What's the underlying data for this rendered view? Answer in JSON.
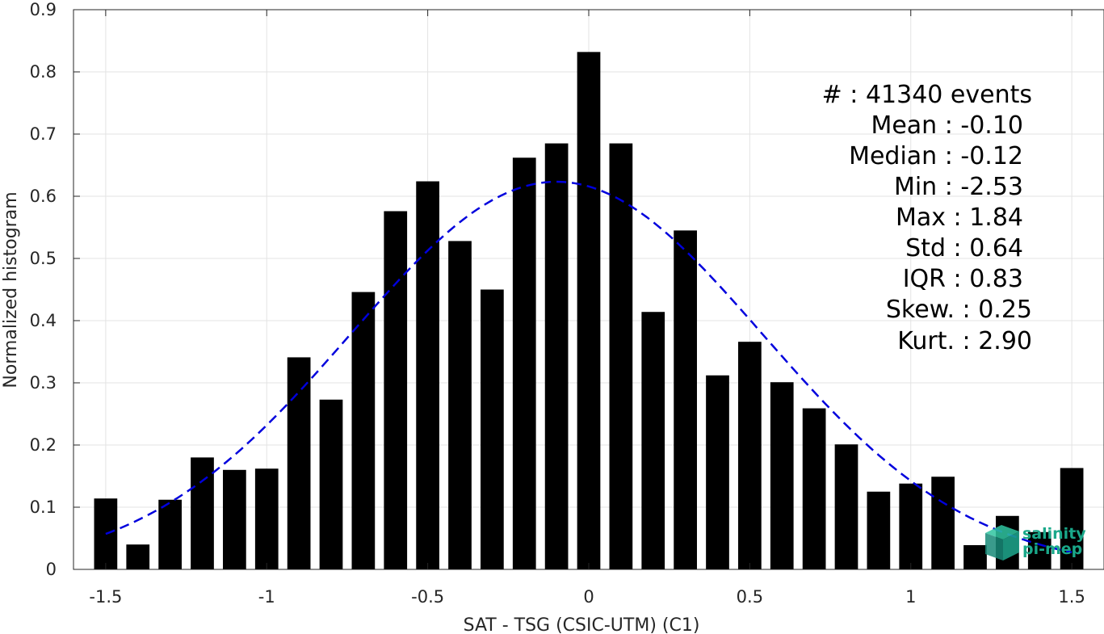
{
  "chart_data": {
    "type": "bar",
    "xlabel": "SAT - TSG (CSIC-UTM) (C1)",
    "ylabel": "Normalized histogram",
    "xlim": [
      -1.6,
      1.6
    ],
    "ylim": [
      0,
      0.9
    ],
    "xticks": [
      -1.5,
      -1,
      -0.5,
      0,
      0.5,
      1,
      1.5
    ],
    "xtick_labels": [
      "-1.5",
      "-1",
      "-0.5",
      "0",
      "0.5",
      "1",
      "1.5"
    ],
    "yticks": [
      0,
      0.1,
      0.2,
      0.3,
      0.4,
      0.5,
      0.6,
      0.7,
      0.8,
      0.9
    ],
    "ytick_labels": [
      "0",
      "0.1",
      "0.2",
      "0.3",
      "0.4",
      "0.5",
      "0.6",
      "0.7",
      "0.8",
      "0.9"
    ],
    "grid": true,
    "bar_color": "#000000",
    "fit_color": "#0000dd",
    "bars": {
      "x": [
        -1.5,
        -1.4,
        -1.3,
        -1.2,
        -1.1,
        -1.0,
        -0.9,
        -0.8,
        -0.7,
        -0.6,
        -0.5,
        -0.4,
        -0.3,
        -0.2,
        -0.1,
        0.0,
        0.1,
        0.2,
        0.3,
        0.4,
        0.5,
        0.6,
        0.7,
        0.8,
        0.9,
        1.0,
        1.1,
        1.2,
        1.3,
        1.4,
        1.5
      ],
      "values": [
        0.114,
        0.04,
        0.112,
        0.18,
        0.16,
        0.162,
        0.341,
        0.273,
        0.446,
        0.576,
        0.624,
        0.528,
        0.45,
        0.662,
        0.685,
        0.832,
        0.685,
        0.414,
        0.545,
        0.312,
        0.366,
        0.301,
        0.259,
        0.201,
        0.125,
        0.138,
        0.149,
        0.039,
        0.086,
        0.06,
        0.163
      ]
    },
    "fit_curve": {
      "type": "normal",
      "mean": -0.1,
      "std": 0.64,
      "x_range": [
        -1.5,
        1.5
      ]
    }
  },
  "stats": {
    "count": "#  : 41340 events",
    "mean": "Mean : -0.10",
    "median": "Median : -0.12",
    "min": "Min : -2.53",
    "max": "Max : 1.84",
    "std": "Std : 0.64",
    "iqr": "IQR : 0.83",
    "skew": "Skew. : 0.25",
    "kurt": "Kurt. : 2.90"
  },
  "logo": {
    "line1": "salinity",
    "line2": "pi-mep",
    "color": "#1aa88a"
  }
}
